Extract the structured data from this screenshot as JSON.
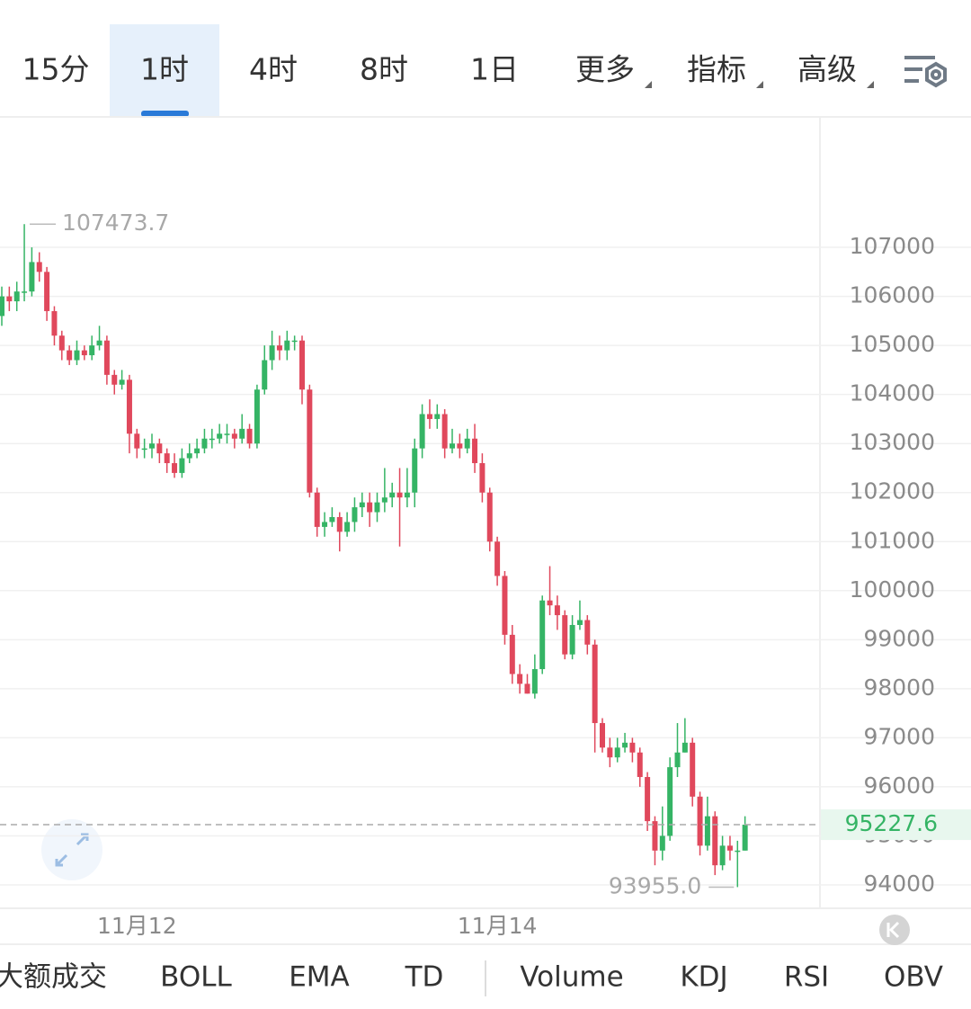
{
  "tabs": [
    "15分",
    "1时",
    "4时",
    "8时",
    "1日",
    "更多",
    "指标",
    "高级"
  ],
  "active_tab": 1,
  "indicators": [
    "大额成交",
    "BOLL",
    "EMA",
    "TD",
    "Volume",
    "KDJ",
    "RSI",
    "OBV"
  ],
  "chart_data": {
    "type": "candlestick",
    "categories": [
      null,
      null,
      null,
      null,
      null,
      null,
      null,
      null,
      null,
      null,
      null,
      null,
      null,
      null,
      null,
      null,
      null,
      null,
      "11月12",
      null,
      null,
      null,
      null,
      null,
      null,
      null,
      null,
      null,
      null,
      null,
      null,
      null,
      null,
      null,
      null,
      null,
      null,
      null,
      null,
      null,
      null,
      null,
      null,
      null,
      null,
      null,
      null,
      null,
      null,
      null,
      null,
      null,
      null,
      null,
      null,
      null,
      null,
      null,
      null,
      null,
      null,
      null,
      null,
      null,
      null,
      null,
      "11月14",
      null,
      null,
      null,
      null,
      null,
      null,
      null,
      null,
      null,
      null,
      null,
      null,
      null,
      null,
      null,
      null,
      null,
      null,
      null,
      null,
      null,
      null,
      null,
      null,
      null,
      null,
      null,
      null,
      null,
      null,
      null,
      null,
      null
    ],
    "open": [
      105600,
      106000,
      105900,
      106100,
      106100,
      106700,
      106500,
      105700,
      105200,
      104900,
      104700,
      104900,
      104800,
      105000,
      105100,
      104400,
      104200,
      104300,
      103200,
      102900,
      102900,
      103000,
      102800,
      102600,
      102400,
      102700,
      102800,
      102900,
      103100,
      103100,
      103200,
      103200,
      103100,
      103300,
      103000,
      104100,
      104700,
      105000,
      104900,
      105100,
      105100,
      104100,
      102000,
      101300,
      101400,
      101500,
      101200,
      101400,
      101700,
      101800,
      101600,
      101800,
      101900,
      102000,
      101900,
      102000,
      102900,
      103600,
      103500,
      103600,
      102900,
      103000,
      102900,
      103100,
      102600,
      102000,
      101000,
      100300,
      99100,
      98300,
      98100,
      97900,
      98400,
      99800,
      99700,
      99500,
      98700,
      99300,
      99400,
      98900,
      97300,
      96800,
      96600,
      96800,
      96900,
      96700,
      96200,
      95300,
      94700,
      95000,
      96400,
      96700,
      96900,
      95800,
      94800,
      95400,
      94400,
      94800,
      94700,
      94700
    ],
    "high": [
      106200,
      106200,
      106300,
      107473.7,
      107000,
      106900,
      106600,
      105800,
      105300,
      105000,
      105100,
      105000,
      105200,
      105400,
      105200,
      104500,
      104500,
      104400,
      103300,
      103100,
      103200,
      103100,
      102900,
      102800,
      102900,
      103000,
      103100,
      103300,
      103300,
      103400,
      103400,
      103300,
      103600,
      103400,
      104200,
      105000,
      105300,
      105200,
      105300,
      105200,
      105200,
      104200,
      102100,
      101600,
      101700,
      101600,
      101600,
      101900,
      102000,
      102000,
      102000,
      102500,
      102200,
      102500,
      102500,
      103100,
      103800,
      103900,
      103800,
      103700,
      103300,
      103200,
      103300,
      103400,
      102800,
      102100,
      101100,
      100400,
      99300,
      98500,
      98300,
      98700,
      99900,
      100500,
      99900,
      99600,
      99500,
      99800,
      99500,
      99000,
      97400,
      97000,
      97000,
      97100,
      97000,
      96800,
      96300,
      95400,
      95600,
      96600,
      97300,
      97400,
      97000,
      95900,
      95800,
      95500,
      95000,
      95000,
      94900,
      95400
    ],
    "low": [
      105400,
      105700,
      105700,
      105900,
      106000,
      106300,
      105500,
      105000,
      104700,
      104600,
      104600,
      104700,
      104700,
      104900,
      104200,
      104000,
      104100,
      102800,
      102700,
      102700,
      102700,
      102600,
      102400,
      102300,
      102300,
      102600,
      102700,
      102800,
      102900,
      103000,
      103000,
      102900,
      103000,
      102900,
      102900,
      104000,
      104500,
      104700,
      104700,
      104900,
      103800,
      101900,
      101100,
      101100,
      101300,
      100800,
      101100,
      101200,
      101500,
      101300,
      101400,
      101600,
      101700,
      100900,
      101700,
      101700,
      102700,
      103300,
      103300,
      102700,
      102800,
      102700,
      102800,
      102400,
      101800,
      100800,
      100100,
      98900,
      98100,
      97900,
      97900,
      97800,
      98300,
      99500,
      99200,
      98600,
      98600,
      99200,
      98700,
      96700,
      96700,
      96400,
      96500,
      96700,
      96500,
      96000,
      95100,
      94400,
      94500,
      94900,
      96200,
      96700,
      95600,
      94600,
      94700,
      94200,
      94300,
      94500,
      93955.0,
      94700
    ],
    "close": [
      106000,
      105900,
      106100,
      106100,
      106700,
      106500,
      105700,
      105200,
      104900,
      104700,
      104900,
      104800,
      105000,
      105100,
      104400,
      104200,
      104300,
      103200,
      102900,
      102900,
      103000,
      102800,
      102600,
      102400,
      102700,
      102800,
      102900,
      103100,
      103100,
      103200,
      103200,
      103100,
      103300,
      103000,
      104100,
      104700,
      105000,
      104900,
      105100,
      105100,
      104100,
      102000,
      101300,
      101400,
      101500,
      101200,
      101400,
      101700,
      101800,
      101600,
      101800,
      101900,
      102000,
      101900,
      102000,
      102900,
      103600,
      103500,
      103600,
      102900,
      103000,
      102900,
      103100,
      102600,
      102000,
      101000,
      100300,
      99100,
      98300,
      98100,
      97900,
      98400,
      99800,
      99700,
      99500,
      98700,
      99300,
      99400,
      98900,
      97300,
      96800,
      96600,
      96800,
      96900,
      96700,
      96200,
      95300,
      94700,
      95000,
      96400,
      96700,
      96900,
      95800,
      94800,
      95400,
      94400,
      94800,
      94700,
      94700,
      95227.6
    ],
    "up_color": "#35b465",
    "down_color": "#e0485c",
    "max_index": 3,
    "min_index": 98,
    "min_label": "93955.0",
    "ylim": [
      93560,
      109660
    ],
    "yticks": [
      94000,
      95000,
      96000,
      97000,
      98000,
      99000,
      100000,
      101000,
      102000,
      103000,
      104000,
      105000,
      106000,
      107000
    ],
    "grid": true
  }
}
